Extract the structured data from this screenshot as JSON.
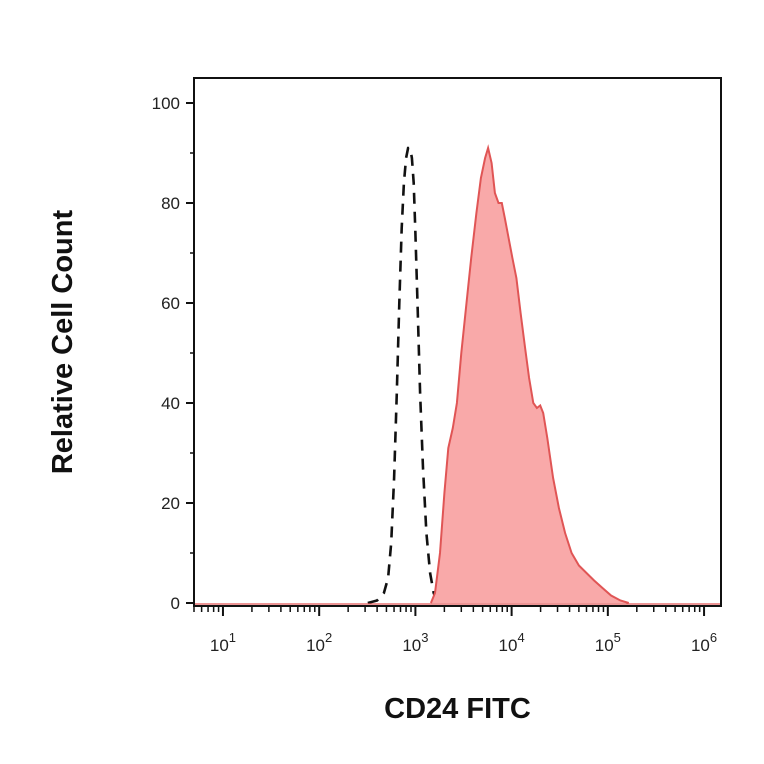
{
  "chart_data": {
    "type": "area",
    "title": "",
    "xlabel": "CD24 FITC",
    "ylabel": "Relative Cell Count",
    "x_scale": "log",
    "xlim": [
      5,
      1500000
    ],
    "ylim": [
      0,
      105
    ],
    "y_ticks": [
      0,
      20,
      40,
      60,
      80,
      100
    ],
    "y_tick_labels": [
      "0",
      "20",
      "40",
      "60",
      "80",
      "100"
    ],
    "x_ticks": [
      {
        "base": "10",
        "exp": "1",
        "value": 10
      },
      {
        "base": "10",
        "exp": "2",
        "value": 100
      },
      {
        "base": "10",
        "exp": "3",
        "value": 1000
      },
      {
        "base": "10",
        "exp": "4",
        "value": 10000
      },
      {
        "base": "10",
        "exp": "5",
        "value": 100000
      },
      {
        "base": "10",
        "exp": "6",
        "value": 1000000
      }
    ],
    "grid": false,
    "series": [
      {
        "style": "dashed",
        "color": "#111111",
        "fill": "none",
        "points": [
          [
            320,
            0
          ],
          [
            400,
            0.5
          ],
          [
            470,
            2
          ],
          [
            520,
            5
          ],
          [
            560,
            12
          ],
          [
            600,
            25
          ],
          [
            640,
            42
          ],
          [
            680,
            60
          ],
          [
            720,
            75
          ],
          [
            760,
            84
          ],
          [
            800,
            89
          ],
          [
            840,
            91
          ],
          [
            880,
            91
          ],
          [
            920,
            89
          ],
          [
            960,
            84
          ],
          [
            1000,
            74
          ],
          [
            1060,
            58
          ],
          [
            1120,
            42
          ],
          [
            1200,
            27
          ],
          [
            1300,
            14
          ],
          [
            1420,
            6
          ],
          [
            1550,
            2
          ],
          [
            1700,
            0
          ]
        ]
      },
      {
        "style": "filled",
        "color": "#e05555",
        "fill": "#f9a9a9",
        "points": [
          [
            1450,
            0
          ],
          [
            1600,
            2
          ],
          [
            1800,
            10
          ],
          [
            2000,
            22
          ],
          [
            2200,
            31
          ],
          [
            2450,
            35
          ],
          [
            2700,
            40
          ],
          [
            3000,
            50
          ],
          [
            3400,
            60
          ],
          [
            3800,
            69
          ],
          [
            4300,
            78
          ],
          [
            4800,
            85
          ],
          [
            5300,
            89
          ],
          [
            5700,
            91
          ],
          [
            6200,
            88
          ],
          [
            6700,
            82
          ],
          [
            7300,
            80
          ],
          [
            7900,
            80
          ],
          [
            8500,
            77
          ],
          [
            9300,
            73
          ],
          [
            10200,
            69
          ],
          [
            11200,
            65
          ],
          [
            12400,
            58
          ],
          [
            13800,
            51
          ],
          [
            15200,
            45
          ],
          [
            16800,
            40
          ],
          [
            18300,
            39
          ],
          [
            19800,
            39.5
          ],
          [
            21300,
            38
          ],
          [
            23500,
            33
          ],
          [
            27000,
            25
          ],
          [
            31000,
            19
          ],
          [
            36000,
            14
          ],
          [
            42000,
            10
          ],
          [
            50000,
            7.5
          ],
          [
            60000,
            6
          ],
          [
            72000,
            4.5
          ],
          [
            88000,
            3
          ],
          [
            108000,
            1.5
          ],
          [
            135000,
            0.5
          ],
          [
            165000,
            0
          ]
        ]
      }
    ]
  }
}
